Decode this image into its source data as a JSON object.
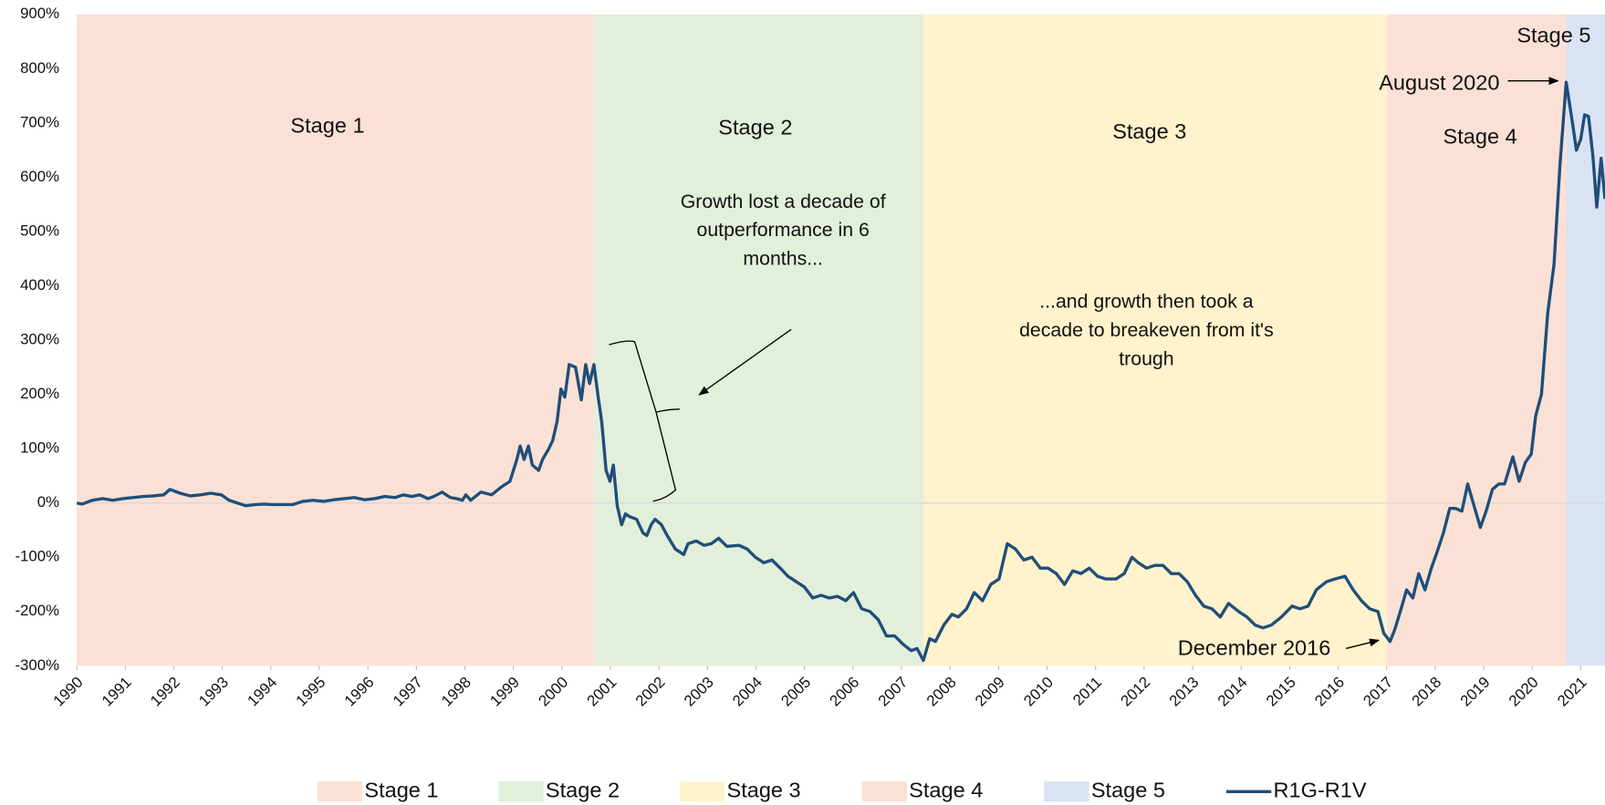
{
  "chart_data": {
    "type": "line",
    "stages": [
      {
        "name": "Stage 1",
        "start": 1990,
        "end": 2000.66,
        "color": "#fbe1d5"
      },
      {
        "name": "Stage 2",
        "start": 2000.66,
        "end": 2007.45,
        "color": "#e2efda"
      },
      {
        "name": "Stage 3",
        "start": 2007.45,
        "end": 2017.01,
        "color": "#fff2cc"
      },
      {
        "name": "Stage 4",
        "start": 2017.01,
        "end": 2020.7,
        "color": "#fbe1d5"
      },
      {
        "name": "Stage 5",
        "start": 2020.7,
        "end": 2021.5,
        "color": "#dae3f3"
      }
    ],
    "annotations": [
      {
        "lines": [
          "Growth lost a decade of",
          "outperformance in 6",
          "months..."
        ]
      },
      {
        "lines": [
          "...and growth then took a",
          "decade to breakeven from it's",
          "trough"
        ]
      },
      {
        "lines": [
          "August 2020"
        ]
      },
      {
        "lines": [
          "December 2016"
        ]
      }
    ],
    "x": [
      1990.0,
      1990.11,
      1990.32,
      1990.53,
      1990.74,
      1990.95,
      1991.16,
      1991.37,
      1991.58,
      1991.79,
      1991.92,
      1992.13,
      1992.34,
      1992.55,
      1992.76,
      1992.98,
      1993.14,
      1993.31,
      1993.48,
      1993.69,
      1993.86,
      1994.03,
      1994.24,
      1994.45,
      1994.66,
      1994.87,
      1995.09,
      1995.3,
      1995.51,
      1995.72,
      1995.93,
      1996.14,
      1996.35,
      1996.56,
      1996.73,
      1996.9,
      1997.07,
      1997.24,
      1997.36,
      1997.53,
      1997.7,
      1997.83,
      1997.95,
      1998.02,
      1998.12,
      1998.33,
      1998.55,
      1998.76,
      1998.93,
      1999.07,
      1999.14,
      1999.22,
      1999.31,
      1999.39,
      1999.52,
      1999.6,
      1999.73,
      1999.81,
      1999.9,
      1999.98,
      2000.06,
      2000.15,
      2000.28,
      2000.4,
      2000.49,
      2000.57,
      2000.66,
      2000.74,
      2000.82,
      2000.91,
      2000.99,
      2001.06,
      2001.14,
      2001.23,
      2001.31,
      2001.39,
      2001.54,
      2001.67,
      2001.75,
      2001.84,
      2001.92,
      2002.05,
      2002.17,
      2002.34,
      2002.51,
      2002.6,
      2002.77,
      2002.93,
      2003.08,
      2003.23,
      2003.4,
      2003.65,
      2003.82,
      2003.99,
      2004.16,
      2004.33,
      2004.5,
      2004.66,
      2004.83,
      2005.0,
      2005.17,
      2005.34,
      2005.51,
      2005.68,
      2005.85,
      2006.01,
      2006.18,
      2006.35,
      2006.52,
      2006.69,
      2006.86,
      2007.03,
      2007.2,
      2007.32,
      2007.45,
      2007.58,
      2007.7,
      2007.87,
      2008.04,
      2008.17,
      2008.34,
      2008.5,
      2008.67,
      2008.84,
      2009.01,
      2009.18,
      2009.35,
      2009.52,
      2009.69,
      2009.86,
      2010.02,
      2010.19,
      2010.36,
      2010.53,
      2010.7,
      2010.87,
      2011.04,
      2011.21,
      2011.42,
      2011.59,
      2011.75,
      2011.88,
      2012.05,
      2012.22,
      2012.39,
      2012.56,
      2012.72,
      2012.89,
      2013.06,
      2013.23,
      2013.4,
      2013.57,
      2013.74,
      2013.95,
      2014.12,
      2014.29,
      2014.45,
      2014.62,
      2014.83,
      2015.05,
      2015.21,
      2015.38,
      2015.55,
      2015.76,
      2015.93,
      2016.14,
      2016.31,
      2016.48,
      2016.65,
      2016.82,
      2016.94,
      2017.07,
      2017.16,
      2017.28,
      2017.41,
      2017.54,
      2017.66,
      2017.79,
      2017.92,
      2018.04,
      2018.17,
      2018.3,
      2018.42,
      2018.55,
      2018.67,
      2018.8,
      2018.93,
      2019.05,
      2019.18,
      2019.31,
      2019.43,
      2019.6,
      2019.73,
      2019.86,
      2019.98,
      2020.07,
      2020.19,
      2020.32,
      2020.45,
      2020.57,
      2020.7,
      2020.83,
      2020.91,
      2021.0,
      2021.08,
      2021.16,
      2021.25,
      2021.33,
      2021.42,
      2021.5
    ],
    "series": [
      {
        "name": "R1G-R1V",
        "color": "#1f4e79",
        "values": [
          0,
          -2,
          5,
          8,
          5,
          8,
          10,
          12,
          13,
          15,
          25,
          18,
          13,
          15,
          18,
          15,
          5,
          0,
          -5,
          -3,
          -2,
          -3,
          -3,
          -3,
          3,
          5,
          3,
          6,
          8,
          10,
          6,
          8,
          12,
          10,
          15,
          12,
          15,
          8,
          12,
          20,
          10,
          8,
          5,
          15,
          5,
          20,
          15,
          30,
          40,
          80,
          105,
          80,
          105,
          70,
          60,
          80,
          100,
          115,
          150,
          210,
          195,
          255,
          250,
          190,
          255,
          220,
          255,
          200,
          150,
          60,
          40,
          70,
          -5,
          -40,
          -20,
          -25,
          -30,
          -55,
          -60,
          -40,
          -30,
          -40,
          -60,
          -85,
          -95,
          -75,
          -70,
          -78,
          -75,
          -65,
          -80,
          -78,
          -85,
          -100,
          -110,
          -105,
          -120,
          -135,
          -145,
          -155,
          -175,
          -170,
          -175,
          -172,
          -180,
          -165,
          -195,
          -200,
          -215,
          -245,
          -245,
          -260,
          -272,
          -268,
          -290,
          -250,
          -255,
          -225,
          -205,
          -210,
          -195,
          -165,
          -180,
          -150,
          -140,
          -75,
          -85,
          -105,
          -100,
          -120,
          -120,
          -130,
          -150,
          -125,
          -130,
          -120,
          -135,
          -140,
          -140,
          -130,
          -100,
          -110,
          -120,
          -115,
          -115,
          -130,
          -130,
          -145,
          -170,
          -190,
          -195,
          -210,
          -185,
          -200,
          -210,
          -225,
          -230,
          -225,
          -210,
          -190,
          -195,
          -190,
          -160,
          -145,
          -140,
          -135,
          -160,
          -180,
          -195,
          -200,
          -240,
          -255,
          -235,
          -200,
          -160,
          -175,
          -130,
          -160,
          -120,
          -90,
          -55,
          -10,
          -10,
          -15,
          35,
          -5,
          -45,
          -15,
          25,
          35,
          35,
          85,
          40,
          75,
          90,
          160,
          200,
          350,
          440,
          620,
          775,
          700,
          650,
          670,
          715,
          712,
          640,
          545,
          635,
          560
        ]
      }
    ],
    "xlim": [
      1990,
      2021.5
    ],
    "xticks": [
      1990,
      1991,
      1992,
      1993,
      1994,
      1995,
      1996,
      1997,
      1998,
      1999,
      2000,
      2001,
      2002,
      2003,
      2004,
      2005,
      2006,
      2007,
      2008,
      2009,
      2010,
      2011,
      2012,
      2013,
      2014,
      2015,
      2016,
      2017,
      2018,
      2019,
      2020,
      2021
    ],
    "ylim": [
      -300,
      900
    ],
    "yticks": [
      {
        "value": 900,
        "label": "900%"
      },
      {
        "value": 800,
        "label": "800%"
      },
      {
        "value": 700,
        "label": "700%"
      },
      {
        "value": 600,
        "label": "600%"
      },
      {
        "value": 500,
        "label": "500%"
      },
      {
        "value": 400,
        "label": "400%"
      },
      {
        "value": 300,
        "label": "300%"
      },
      {
        "value": 200,
        "label": "200%"
      },
      {
        "value": 100,
        "label": "100%"
      },
      {
        "value": 0,
        "label": "0%"
      },
      {
        "value": -100,
        "label": "-100%"
      },
      {
        "value": -200,
        "label": "-200%"
      },
      {
        "value": -300,
        "label": "-300%"
      }
    ],
    "legend": "bottom"
  }
}
